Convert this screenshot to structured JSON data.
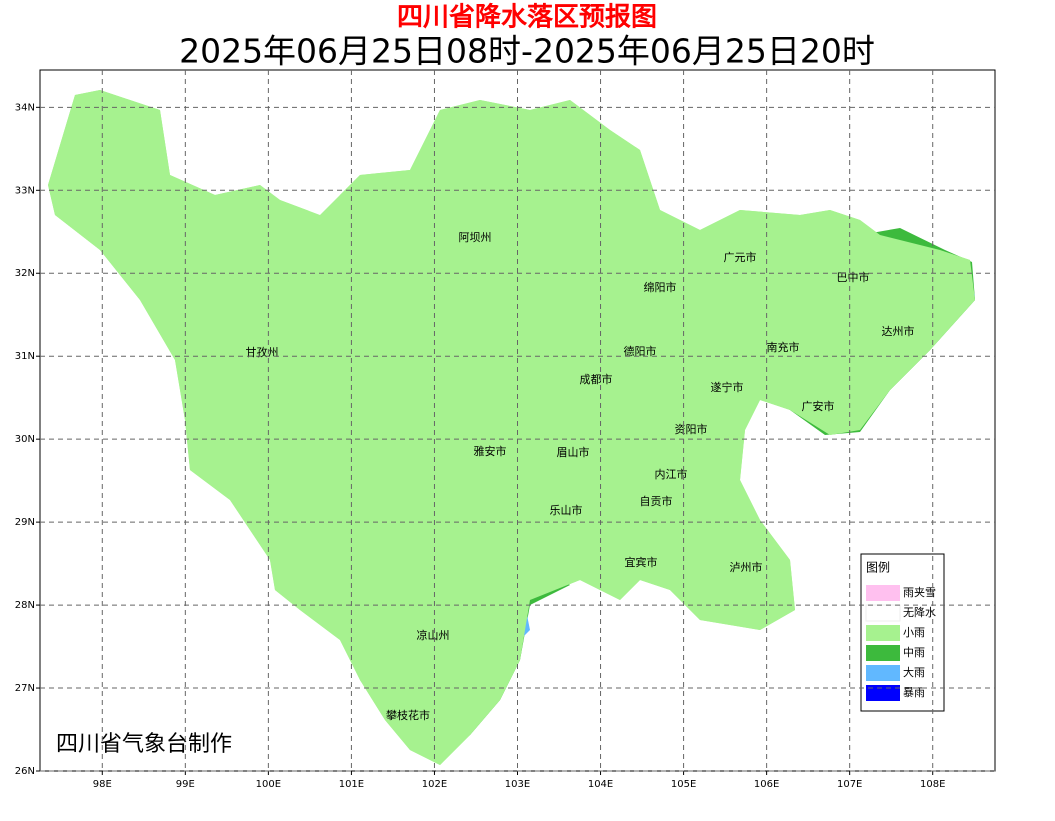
{
  "header": {
    "title": "四川省降水落区预报图",
    "subtitle": "2025年06月25日08时-2025年06月25日20时"
  },
  "map": {
    "xlim": [
      97.25,
      108.75
    ],
    "ylim": [
      26,
      34.45
    ],
    "xticks": [
      {
        "value": 98,
        "label": "98E"
      },
      {
        "value": 99,
        "label": "99E"
      },
      {
        "value": 100,
        "label": "100E"
      },
      {
        "value": 101,
        "label": "101E"
      },
      {
        "value": 102,
        "label": "102E"
      },
      {
        "value": 103,
        "label": "103E"
      },
      {
        "value": 104,
        "label": "104E"
      },
      {
        "value": 105,
        "label": "105E"
      },
      {
        "value": 106,
        "label": "106E"
      },
      {
        "value": 107,
        "label": "107E"
      },
      {
        "value": 108,
        "label": "108E"
      }
    ],
    "yticks": [
      {
        "value": 26,
        "label": "26N"
      },
      {
        "value": 27,
        "label": "27N"
      },
      {
        "value": 28,
        "label": "28N"
      },
      {
        "value": 29,
        "label": "29N"
      },
      {
        "value": 30,
        "label": "30N"
      },
      {
        "value": 31,
        "label": "31N"
      },
      {
        "value": 32,
        "label": "32N"
      },
      {
        "value": 33,
        "label": "33N"
      },
      {
        "value": 34,
        "label": "34N"
      }
    ],
    "grid": true,
    "cities": [
      "阿坝州",
      "广元市",
      "巴中市",
      "绵阳市",
      "达州市",
      "甘孜州",
      "德阳市",
      "南充市",
      "成都市",
      "遂宁市",
      "广安市",
      "资阳市",
      "雅安市",
      "眉山市",
      "内江市",
      "自贡市",
      "乐山市",
      "宜宾市",
      "泸州市",
      "凉山州",
      "攀枝花市"
    ]
  },
  "legend": {
    "title": "图例",
    "items": [
      {
        "name": "雨夹雪",
        "color": "#ffc0ef"
      },
      {
        "name": "无降水",
        "color": "#ffffff"
      },
      {
        "name": "小雨",
        "color": "#a6f28f"
      },
      {
        "name": "中雨",
        "color": "#3dba3d"
      },
      {
        "name": "大雨",
        "color": "#61b8ff"
      },
      {
        "name": "暴雨",
        "color": "#0000fe"
      }
    ]
  },
  "credit": "四川省气象台制作"
}
